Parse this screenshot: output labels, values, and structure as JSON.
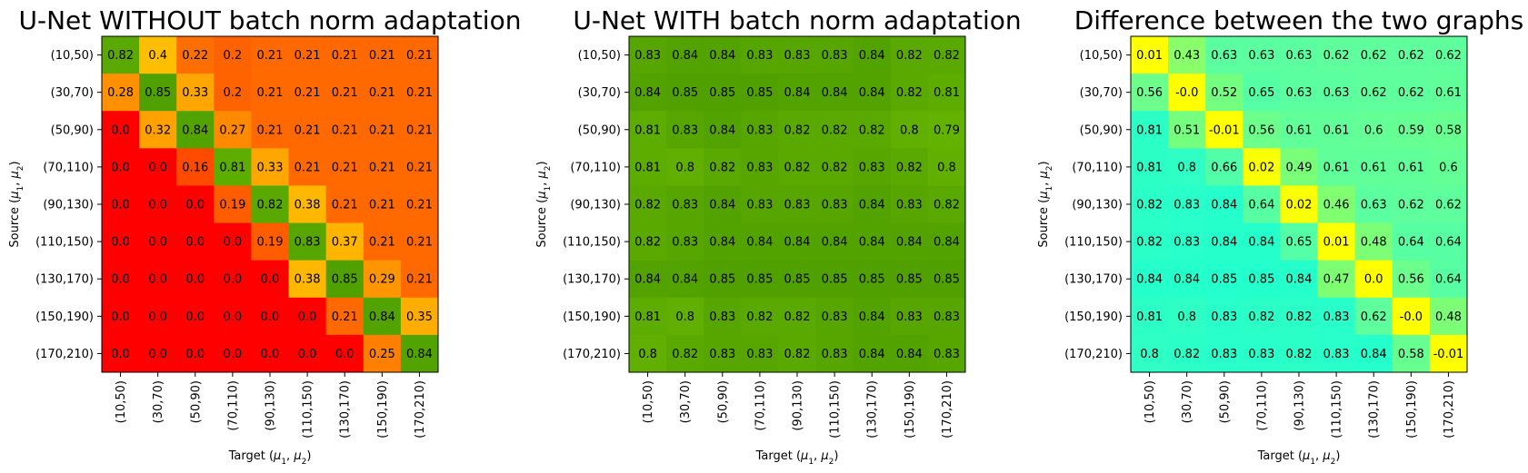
{
  "chart_data": [
    {
      "type": "heatmap",
      "title": "U-Net WITHOUT batch norm adaptation",
      "xlabel_prefix": "Target (",
      "ylabel_prefix": "Source (",
      "label_mu1": "μ",
      "label_sub1": "1",
      "label_sep": ", ",
      "label_mu2": "μ",
      "label_sub2": "2",
      "label_suffix": ")",
      "x_categories": [
        "(10,50)",
        "(30,70)",
        "(50,90)",
        "(70,110)",
        "(90,130)",
        "(110,150)",
        "(130,170)",
        "(150,190)",
        "(170,210)"
      ],
      "y_categories": [
        "(10,50)",
        "(30,70)",
        "(50,90)",
        "(70,110)",
        "(90,130)",
        "(110,150)",
        "(130,170)",
        "(150,190)",
        "(170,210)"
      ],
      "colormap": "red-orange-yellow-green",
      "values": [
        [
          "0.82",
          "0.4",
          "0.22",
          "0.2",
          "0.21",
          "0.21",
          "0.21",
          "0.21",
          "0.21"
        ],
        [
          "0.28",
          "0.85",
          "0.33",
          "0.2",
          "0.21",
          "0.21",
          "0.21",
          "0.21",
          "0.21"
        ],
        [
          "0.0",
          "0.32",
          "0.84",
          "0.27",
          "0.21",
          "0.21",
          "0.21",
          "0.21",
          "0.21"
        ],
        [
          "0.0",
          "0.0",
          "0.16",
          "0.81",
          "0.33",
          "0.21",
          "0.21",
          "0.21",
          "0.21"
        ],
        [
          "0.0",
          "0.0",
          "0.0",
          "0.19",
          "0.82",
          "0.38",
          "0.21",
          "0.21",
          "0.21"
        ],
        [
          "0.0",
          "0.0",
          "0.0",
          "0.0",
          "0.19",
          "0.83",
          "0.37",
          "0.21",
          "0.21"
        ],
        [
          "0.0",
          "0.0",
          "0.0",
          "0.0",
          "0.0",
          "0.38",
          "0.85",
          "0.29",
          "0.21"
        ],
        [
          "0.0",
          "0.0",
          "0.0",
          "0.0",
          "0.0",
          "0.0",
          "0.21",
          "0.84",
          "0.35"
        ],
        [
          "0.0",
          "0.0",
          "0.0",
          "0.0",
          "0.0",
          "0.0",
          "0.0",
          "0.25",
          "0.84"
        ]
      ]
    },
    {
      "type": "heatmap",
      "title": "U-Net WITH batch norm adaptation",
      "xlabel_prefix": "Target (",
      "ylabel_prefix": "Source (",
      "label_mu1": "μ",
      "label_sub1": "1",
      "label_sep": ", ",
      "label_mu2": "μ",
      "label_sub2": "2",
      "label_suffix": ")",
      "x_categories": [
        "(10,50)",
        "(30,70)",
        "(50,90)",
        "(70,110)",
        "(90,130)",
        "(110,150)",
        "(130,170)",
        "(150,190)",
        "(170,210)"
      ],
      "y_categories": [
        "(10,50)",
        "(30,70)",
        "(50,90)",
        "(70,110)",
        "(90,130)",
        "(110,150)",
        "(130,170)",
        "(150,190)",
        "(170,210)"
      ],
      "colormap": "red-orange-yellow-green",
      "values": [
        [
          "0.83",
          "0.84",
          "0.84",
          "0.83",
          "0.83",
          "0.83",
          "0.84",
          "0.82",
          "0.82"
        ],
        [
          "0.84",
          "0.85",
          "0.85",
          "0.85",
          "0.84",
          "0.84",
          "0.84",
          "0.82",
          "0.81"
        ],
        [
          "0.81",
          "0.83",
          "0.84",
          "0.83",
          "0.82",
          "0.82",
          "0.82",
          "0.8",
          "0.79"
        ],
        [
          "0.81",
          "0.8",
          "0.82",
          "0.83",
          "0.82",
          "0.82",
          "0.83",
          "0.82",
          "0.8"
        ],
        [
          "0.82",
          "0.83",
          "0.84",
          "0.83",
          "0.83",
          "0.83",
          "0.84",
          "0.83",
          "0.82"
        ],
        [
          "0.82",
          "0.83",
          "0.84",
          "0.84",
          "0.84",
          "0.84",
          "0.84",
          "0.84",
          "0.84"
        ],
        [
          "0.84",
          "0.84",
          "0.85",
          "0.85",
          "0.85",
          "0.85",
          "0.85",
          "0.85",
          "0.85"
        ],
        [
          "0.81",
          "0.8",
          "0.83",
          "0.82",
          "0.82",
          "0.83",
          "0.84",
          "0.83",
          "0.83"
        ],
        [
          "0.8",
          "0.82",
          "0.83",
          "0.83",
          "0.82",
          "0.83",
          "0.84",
          "0.84",
          "0.83"
        ]
      ]
    },
    {
      "type": "heatmap",
      "title": "Difference between the two graphs",
      "xlabel_prefix": "Target (",
      "ylabel_prefix": "Source (",
      "label_mu1": "μ",
      "label_sub1": "1",
      "label_sep": ", ",
      "label_mu2": "μ",
      "label_sub2": "2",
      "label_suffix": ")",
      "x_categories": [
        "(10,50)",
        "(30,70)",
        "(50,90)",
        "(70,110)",
        "(90,130)",
        "(110,150)",
        "(130,170)",
        "(150,190)",
        "(170,210)"
      ],
      "y_categories": [
        "(10,50)",
        "(30,70)",
        "(50,90)",
        "(70,110)",
        "(90,130)",
        "(110,150)",
        "(130,170)",
        "(150,190)",
        "(170,210)"
      ],
      "colormap": "yellow-green-cyan",
      "values": [
        [
          "0.01",
          "0.43",
          "0.63",
          "0.63",
          "0.63",
          "0.62",
          "0.62",
          "0.62",
          "0.62"
        ],
        [
          "0.56",
          "-0.0",
          "0.52",
          "0.65",
          "0.63",
          "0.63",
          "0.62",
          "0.62",
          "0.61"
        ],
        [
          "0.81",
          "0.51",
          "-0.01",
          "0.56",
          "0.61",
          "0.61",
          "0.6",
          "0.59",
          "0.58"
        ],
        [
          "0.81",
          "0.8",
          "0.66",
          "0.02",
          "0.49",
          "0.61",
          "0.61",
          "0.61",
          "0.6"
        ],
        [
          "0.82",
          "0.83",
          "0.84",
          "0.64",
          "0.02",
          "0.46",
          "0.63",
          "0.62",
          "0.62"
        ],
        [
          "0.82",
          "0.83",
          "0.84",
          "0.84",
          "0.65",
          "0.01",
          "0.48",
          "0.64",
          "0.64"
        ],
        [
          "0.84",
          "0.84",
          "0.85",
          "0.85",
          "0.84",
          "0.47",
          "0.0",
          "0.56",
          "0.64"
        ],
        [
          "0.81",
          "0.8",
          "0.83",
          "0.82",
          "0.82",
          "0.83",
          "0.62",
          "-0.0",
          "0.48"
        ],
        [
          "0.8",
          "0.82",
          "0.83",
          "0.83",
          "0.82",
          "0.83",
          "0.84",
          "0.58",
          "-0.01"
        ]
      ]
    }
  ]
}
